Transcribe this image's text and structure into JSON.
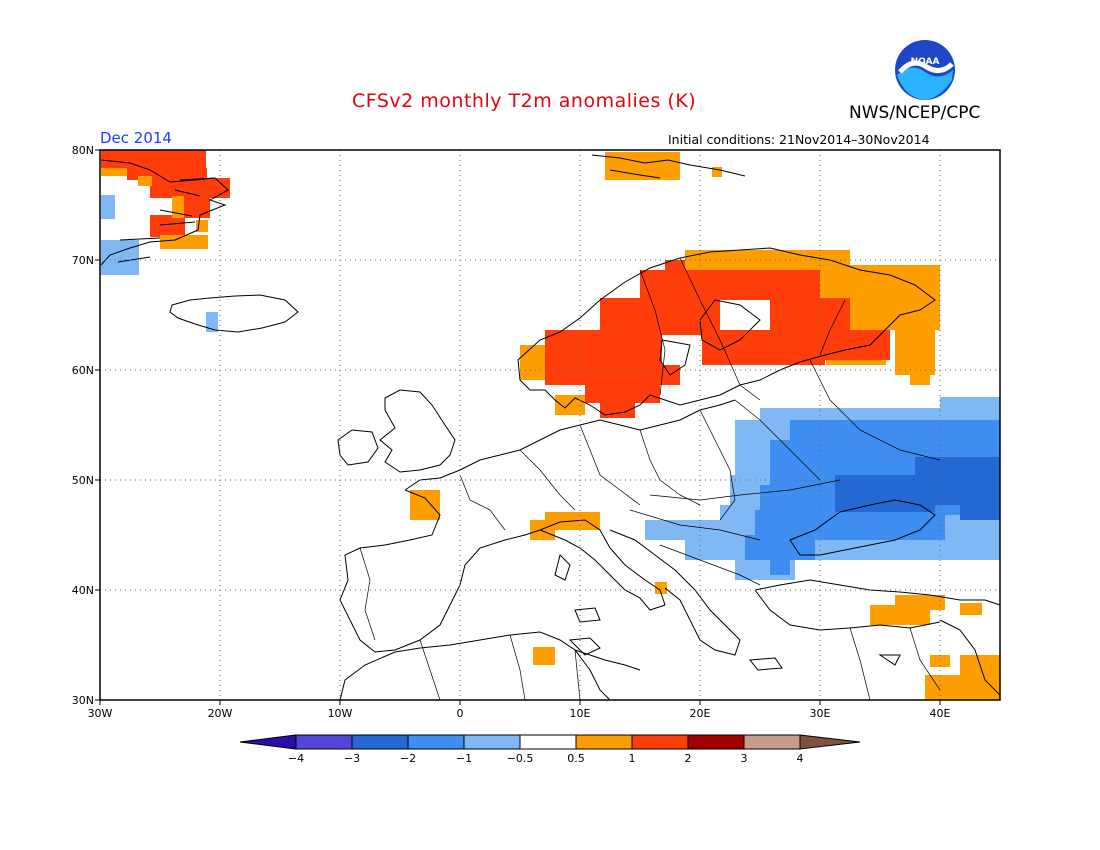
{
  "header": {
    "title": "CFSv2 monthly T2m anomalies (K)",
    "agency": "NWS/NCEP/CPC",
    "logo_text": "NOAA",
    "month": "Dec 2014",
    "initial_conditions": "Initial conditions: 21Nov2014–30Nov2014"
  },
  "map": {
    "projection": "lat-lon",
    "lon_range": [
      -30,
      45
    ],
    "lat_range": [
      30,
      80
    ],
    "grid": true,
    "lat_ticks": [
      {
        "value": 80,
        "label": "80N"
      },
      {
        "value": 70,
        "label": "70N"
      },
      {
        "value": 60,
        "label": "60N"
      },
      {
        "value": 50,
        "label": "50N"
      },
      {
        "value": 40,
        "label": "40N"
      },
      {
        "value": 30,
        "label": "30N"
      }
    ],
    "lon_ticks": [
      {
        "value": -30,
        "label": "30W"
      },
      {
        "value": -20,
        "label": "20W"
      },
      {
        "value": -10,
        "label": "10W"
      },
      {
        "value": 0,
        "label": "0"
      },
      {
        "value": 10,
        "label": "10E"
      },
      {
        "value": 20,
        "label": "20E"
      },
      {
        "value": 30,
        "label": "30E"
      },
      {
        "value": 40,
        "label": "40E"
      }
    ]
  },
  "colorbar": {
    "labels": [
      "−4",
      "−3",
      "−2",
      "−1",
      "−0.5",
      "0.5",
      "1",
      "2",
      "3",
      "4"
    ],
    "colors": [
      "#2c0ea6",
      "#5047d8",
      "#2468d4",
      "#3d8ef0",
      "#7fb8f5",
      "#ffffff",
      "#ff9e00",
      "#ff3d0a",
      "#a30000",
      "#c79c8c",
      "#7d5240"
    ]
  },
  "anomaly_regions": [
    {
      "name": "greenland-east-warm",
      "color": "#ff3d0a"
    },
    {
      "name": "scandinavia-warm",
      "color": "#ff3d0a"
    },
    {
      "name": "scandinavia-fringe",
      "color": "#ff9e00"
    },
    {
      "name": "svalbard-warm",
      "color": "#ff9e00"
    },
    {
      "name": "eastern-europe-cool",
      "color": "#7fb8f5"
    },
    {
      "name": "ukraine-cool",
      "color": "#3d8ef0"
    },
    {
      "name": "black-sea-cold",
      "color": "#2468d4"
    },
    {
      "name": "france-warm",
      "color": "#ff9e00"
    },
    {
      "name": "alps-warm",
      "color": "#ff9e00"
    },
    {
      "name": "turkey-warm",
      "color": "#ff9e00"
    },
    {
      "name": "middle-east-warm",
      "color": "#ff9e00"
    },
    {
      "name": "greenland-cool",
      "color": "#7fb8f5"
    }
  ]
}
